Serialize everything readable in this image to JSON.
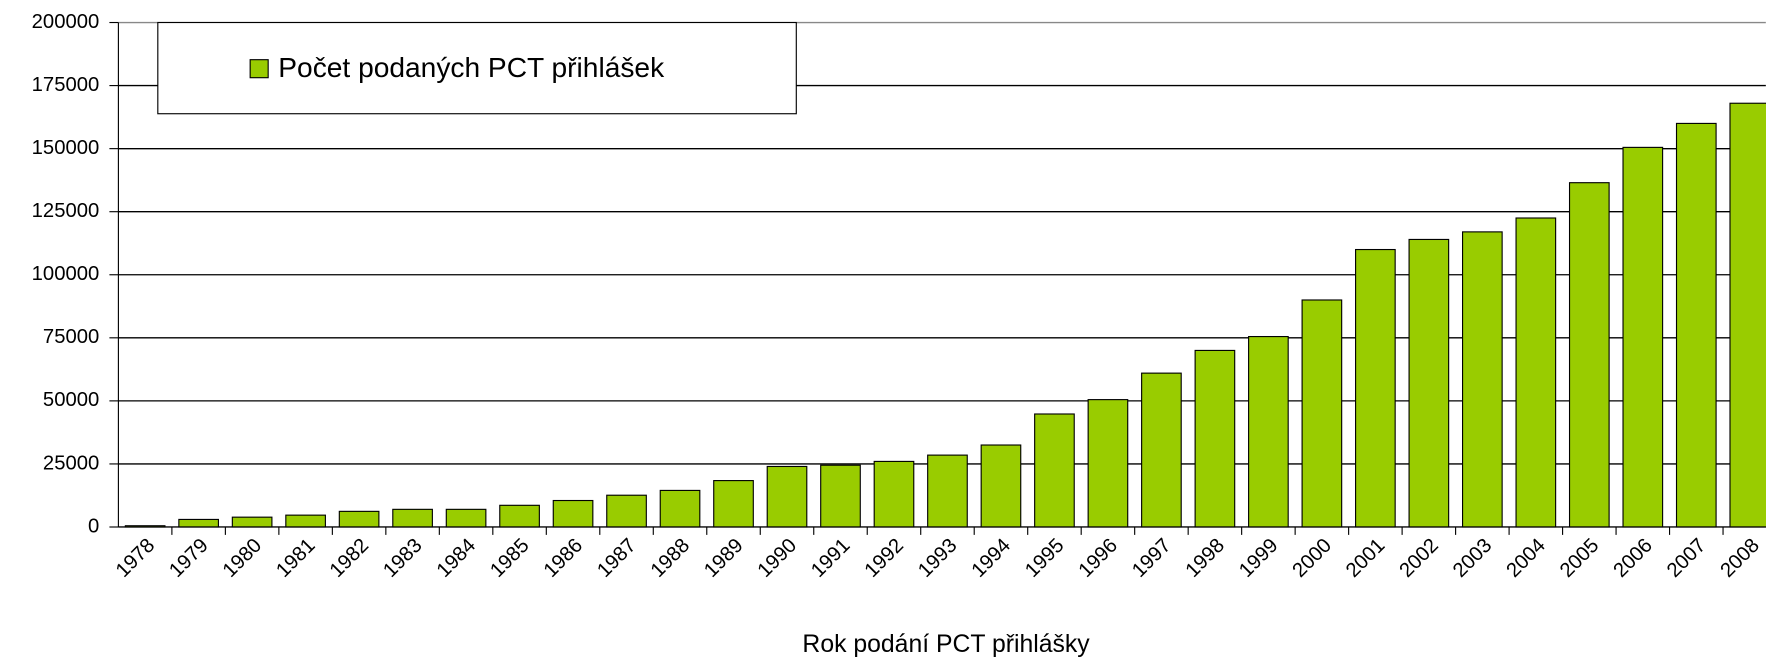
{
  "chart_data": {
    "type": "bar",
    "x_label": "Rok podání PCT přihlášky",
    "categories": [
      "1978",
      "1979",
      "1980",
      "1981",
      "1982",
      "1983",
      "1984",
      "1985",
      "1986",
      "1987",
      "1988",
      "1989",
      "1990",
      "1991",
      "1992",
      "1993",
      "1994",
      "1995",
      "1996",
      "1997",
      "1998",
      "1999",
      "2000",
      "2001",
      "2002",
      "2003",
      "2004",
      "2005",
      "2006",
      "2007",
      "2008"
    ],
    "series": [
      {
        "name": "Počet podaných PCT přihlášek",
        "color": "#99cc00",
        "values": [
          500,
          3000,
          3900,
          4700,
          6200,
          7000,
          7000,
          8600,
          10500,
          12600,
          14500,
          18400,
          24000,
          24500,
          26000,
          28500,
          32500,
          44800,
          50500,
          61000,
          70000,
          75500,
          90000,
          110000,
          114000,
          117000,
          122500,
          136500,
          150500,
          160000,
          168000
        ]
      }
    ],
    "ylim": [
      0,
      200000
    ],
    "yticks": [
      0,
      25000,
      50000,
      75000,
      100000,
      125000,
      150000,
      175000,
      200000
    ],
    "grid": true,
    "legend": "top-left"
  }
}
